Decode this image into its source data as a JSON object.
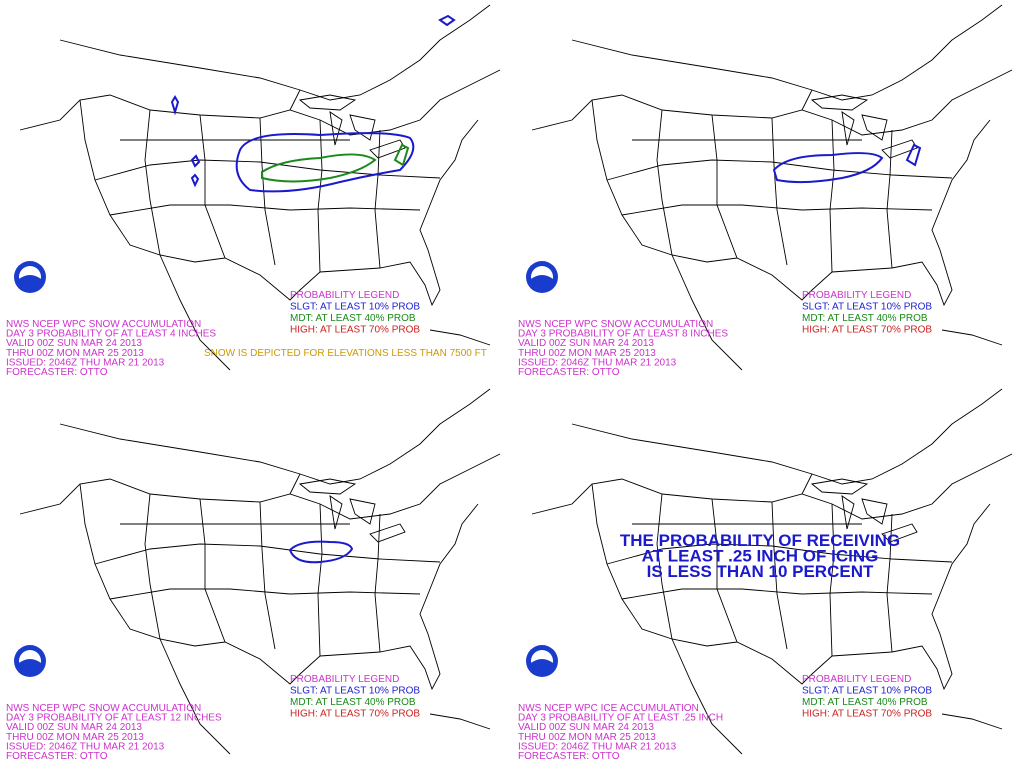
{
  "panels": [
    {
      "header": [
        "NWS NCEP WPC SNOW ACCUMULATION",
        "DAY 3 PROBABILITY OF AT LEAST 4 INCHES",
        "VALID 00Z SUN MAR 24 2013",
        "THRU 00Z MON MAR 25 2013",
        "ISSUED: 2046Z THU MAR 21 2013",
        "FORECASTER: OTTO"
      ],
      "legend": {
        "title": "PROBABILITY LEGEND",
        "slgt": "SLGT: AT LEAST 10% PROB",
        "mdt": "MDT: AT LEAST 40% PROB",
        "high": "HIGH: AT LEAST 70% PROB"
      },
      "note": "SNOW IS DEPICTED FOR ELEVATIONS LESS THAN 7500 FT"
    },
    {
      "header": [
        "NWS NCEP WPC SNOW ACCUMULATION",
        "DAY 3 PROBABILITY OF AT LEAST 8 INCHES",
        "VALID 00Z SUN MAR 24 2013",
        "THRU 00Z MON MAR 25 2013",
        "ISSUED: 2046Z THU MAR 21 2013",
        "FORECASTER: OTTO"
      ],
      "legend": {
        "title": "PROBABILITY LEGEND",
        "slgt": "SLGT: AT LEAST 10% PROB",
        "mdt": "MDT: AT LEAST 40% PROB",
        "high": "HIGH: AT LEAST 70% PROB"
      }
    },
    {
      "header": [
        "NWS NCEP WPC SNOW ACCUMULATION",
        "DAY 3 PROBABILITY OF AT LEAST 12 INCHES",
        "VALID 00Z SUN MAR 24 2013",
        "THRU 00Z MON MAR 25 2013",
        "ISSUED: 2046Z THU MAR 21 2013",
        "FORECASTER: OTTO"
      ],
      "legend": {
        "title": "PROBABILITY LEGEND",
        "slgt": "SLGT: AT LEAST 10% PROB",
        "mdt": "MDT: AT LEAST 40% PROB",
        "high": "HIGH: AT LEAST 70% PROB"
      }
    },
    {
      "header": [
        "NWS NCEP WPC ICE ACCUMULATION",
        "DAY 3 PROBABILITY OF AT LEAST .25 INCH",
        "VALID 00Z SUN MAR 24 2013",
        "THRU 00Z MON MAR 25 2013",
        "ISSUED: 2046Z THU MAR 21 2013",
        "FORECASTER: OTTO"
      ],
      "legend": {
        "title": "PROBABILITY LEGEND",
        "slgt": "SLGT: AT LEAST 10% PROB",
        "mdt": "MDT: AT LEAST 40% PROB",
        "high": "HIGH: AT LEAST 70% PROB"
      },
      "message": [
        "THE PROBABILITY OF RECEIVING",
        "AT LEAST .25 INCH OF ICING",
        "IS LESS THAN 10 PERCENT"
      ]
    }
  ]
}
